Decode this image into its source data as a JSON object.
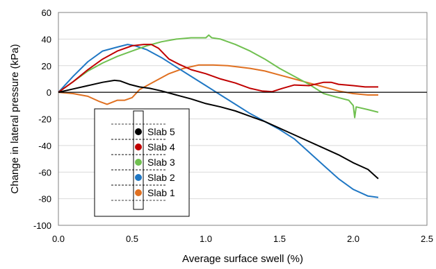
{
  "chart_data": {
    "type": "line",
    "title": "",
    "xlabel": "Average surface swell (%)",
    "ylabel": "Change in lateral pressure (kPa)",
    "xlim": [
      0,
      2.5
    ],
    "ylim": [
      -100,
      60
    ],
    "x_ticks": [
      "0.0",
      "0.5",
      "1.0",
      "1.5",
      "2.0",
      "2.5"
    ],
    "y_ticks": [
      "60",
      "40",
      "20",
      "0",
      "-20",
      "-40",
      "-60",
      "-80",
      "-100"
    ],
    "grid": "horizontal",
    "legend_position": "lower-left",
    "series": [
      {
        "name": "Slab 5",
        "color": "#000000",
        "points": [
          [
            0,
            0
          ],
          [
            0.1,
            2.5
          ],
          [
            0.2,
            5
          ],
          [
            0.3,
            7.5
          ],
          [
            0.38,
            9
          ],
          [
            0.42,
            8.5
          ],
          [
            0.48,
            6
          ],
          [
            0.55,
            4
          ],
          [
            0.62,
            3
          ],
          [
            0.7,
            1
          ],
          [
            0.8,
            -2
          ],
          [
            0.9,
            -5
          ],
          [
            1.0,
            -8.5
          ],
          [
            1.1,
            -11
          ],
          [
            1.2,
            -14
          ],
          [
            1.3,
            -18
          ],
          [
            1.4,
            -22
          ],
          [
            1.5,
            -27
          ],
          [
            1.6,
            -32
          ],
          [
            1.7,
            -37
          ],
          [
            1.8,
            -42
          ],
          [
            1.9,
            -47
          ],
          [
            2.0,
            -53
          ],
          [
            2.1,
            -58
          ],
          [
            2.17,
            -65
          ]
        ]
      },
      {
        "name": "Slab 4",
        "color": "#c00000",
        "points": [
          [
            0,
            0
          ],
          [
            0.1,
            8
          ],
          [
            0.2,
            17
          ],
          [
            0.3,
            25
          ],
          [
            0.4,
            31
          ],
          [
            0.5,
            35
          ],
          [
            0.58,
            36
          ],
          [
            0.63,
            36
          ],
          [
            0.68,
            33
          ],
          [
            0.75,
            25
          ],
          [
            0.82,
            21
          ],
          [
            0.9,
            17
          ],
          [
            1.0,
            14
          ],
          [
            1.1,
            10
          ],
          [
            1.2,
            7
          ],
          [
            1.3,
            3
          ],
          [
            1.38,
            1
          ],
          [
            1.45,
            0.5
          ],
          [
            1.52,
            3
          ],
          [
            1.6,
            5.5
          ],
          [
            1.7,
            5
          ],
          [
            1.8,
            7.5
          ],
          [
            1.85,
            7.5
          ],
          [
            1.9,
            6
          ],
          [
            2.0,
            5
          ],
          [
            2.08,
            4
          ],
          [
            2.17,
            4
          ]
        ]
      },
      {
        "name": "Slab 3",
        "color": "#70c050",
        "points": [
          [
            0,
            0
          ],
          [
            0.1,
            8
          ],
          [
            0.2,
            16
          ],
          [
            0.3,
            22
          ],
          [
            0.4,
            27
          ],
          [
            0.5,
            31
          ],
          [
            0.6,
            35
          ],
          [
            0.7,
            38
          ],
          [
            0.8,
            40
          ],
          [
            0.9,
            41
          ],
          [
            1.0,
            41
          ],
          [
            1.02,
            43
          ],
          [
            1.04,
            41
          ],
          [
            1.1,
            40
          ],
          [
            1.2,
            36
          ],
          [
            1.3,
            31
          ],
          [
            1.4,
            25
          ],
          [
            1.5,
            18
          ],
          [
            1.6,
            12
          ],
          [
            1.7,
            6
          ],
          [
            1.8,
            -1
          ],
          [
            1.9,
            -4
          ],
          [
            1.97,
            -6
          ],
          [
            2.0,
            -10
          ],
          [
            2.01,
            -19
          ],
          [
            2.02,
            -11
          ],
          [
            2.1,
            -13
          ],
          [
            2.17,
            -15
          ]
        ]
      },
      {
        "name": "Slab 2",
        "color": "#1f77c4",
        "points": [
          [
            0,
            0
          ],
          [
            0.1,
            12
          ],
          [
            0.2,
            23
          ],
          [
            0.3,
            31
          ],
          [
            0.4,
            34
          ],
          [
            0.47,
            36
          ],
          [
            0.52,
            35
          ],
          [
            0.6,
            32
          ],
          [
            0.7,
            26
          ],
          [
            0.8,
            19
          ],
          [
            0.9,
            12
          ],
          [
            1.0,
            5
          ],
          [
            1.1,
            -2
          ],
          [
            1.2,
            -9
          ],
          [
            1.3,
            -16
          ],
          [
            1.4,
            -22
          ],
          [
            1.5,
            -28
          ],
          [
            1.6,
            -35
          ],
          [
            1.7,
            -45
          ],
          [
            1.8,
            -55
          ],
          [
            1.9,
            -65
          ],
          [
            2.0,
            -73
          ],
          [
            2.1,
            -78
          ],
          [
            2.17,
            -79
          ]
        ]
      },
      {
        "name": "Slab 1",
        "color": "#e07020",
        "points": [
          [
            0,
            0
          ],
          [
            0.1,
            -1
          ],
          [
            0.2,
            -3
          ],
          [
            0.28,
            -7
          ],
          [
            0.33,
            -9
          ],
          [
            0.4,
            -6
          ],
          [
            0.45,
            -6
          ],
          [
            0.5,
            -4
          ],
          [
            0.55,
            2
          ],
          [
            0.65,
            8
          ],
          [
            0.75,
            14
          ],
          [
            0.85,
            18
          ],
          [
            0.95,
            20.5
          ],
          [
            1.05,
            20.5
          ],
          [
            1.15,
            20
          ],
          [
            1.3,
            18
          ],
          [
            1.4,
            16
          ],
          [
            1.5,
            13
          ],
          [
            1.6,
            10
          ],
          [
            1.7,
            7
          ],
          [
            1.8,
            4
          ],
          [
            1.9,
            1
          ],
          [
            2.0,
            -1
          ],
          [
            2.1,
            -2
          ],
          [
            2.17,
            -2
          ]
        ]
      }
    ]
  }
}
